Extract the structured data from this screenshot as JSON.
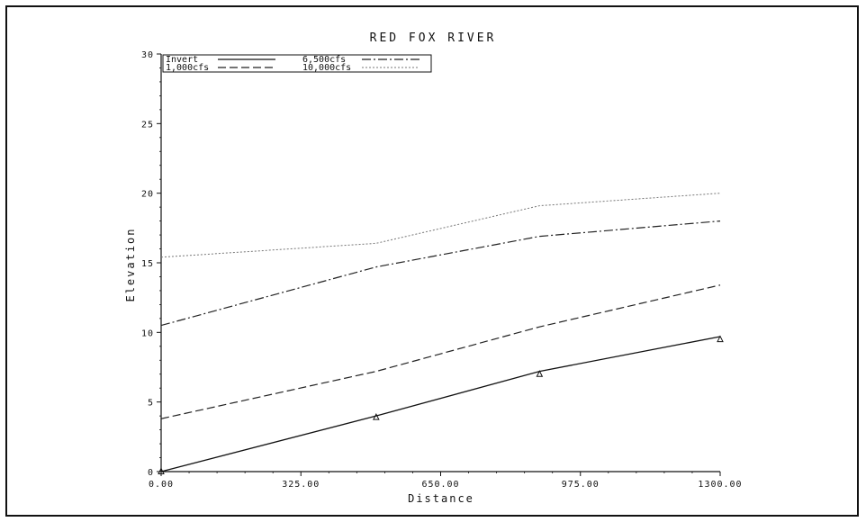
{
  "chart_data": {
    "type": "line",
    "title": "RED FOX RIVER",
    "xlabel": "Distance",
    "ylabel": "Elevation",
    "xlim": [
      0,
      1300
    ],
    "ylim": [
      0,
      30
    ],
    "x_ticks": [
      0,
      325,
      650,
      975,
      1300
    ],
    "x_tick_labels": [
      "0.00",
      "325.00",
      "650.00",
      "975.00",
      "1300.00"
    ],
    "y_ticks": [
      0,
      5,
      10,
      15,
      20,
      25,
      30
    ],
    "y_tick_labels": [
      "0",
      "5",
      "10",
      "15",
      "20",
      "25",
      "30"
    ],
    "grid": false,
    "legend_position": "top-left",
    "series": [
      {
        "name": "Invert",
        "style": "solid",
        "x": [
          0,
          500,
          880,
          1300
        ],
        "y": [
          0,
          4,
          7.2,
          9.7
        ]
      },
      {
        "name": "1,000cfs",
        "style": "dashed",
        "x": [
          0,
          500,
          880,
          1300
        ],
        "y": [
          3.8,
          7.2,
          10.4,
          13.4
        ]
      },
      {
        "name": "6,500cfs",
        "style": "dash-dot",
        "x": [
          0,
          500,
          880,
          1300
        ],
        "y": [
          10.5,
          14.7,
          16.9,
          18.0
        ]
      },
      {
        "name": "10,000cfs",
        "style": "dotted",
        "x": [
          0,
          500,
          880,
          1300
        ],
        "y": [
          15.4,
          16.4,
          19.1,
          20.0
        ]
      }
    ],
    "markers": {
      "symbol": "triangle",
      "x": [
        0,
        500,
        880,
        1300
      ],
      "y": [
        0,
        3.9,
        7.0,
        9.5
      ]
    }
  }
}
